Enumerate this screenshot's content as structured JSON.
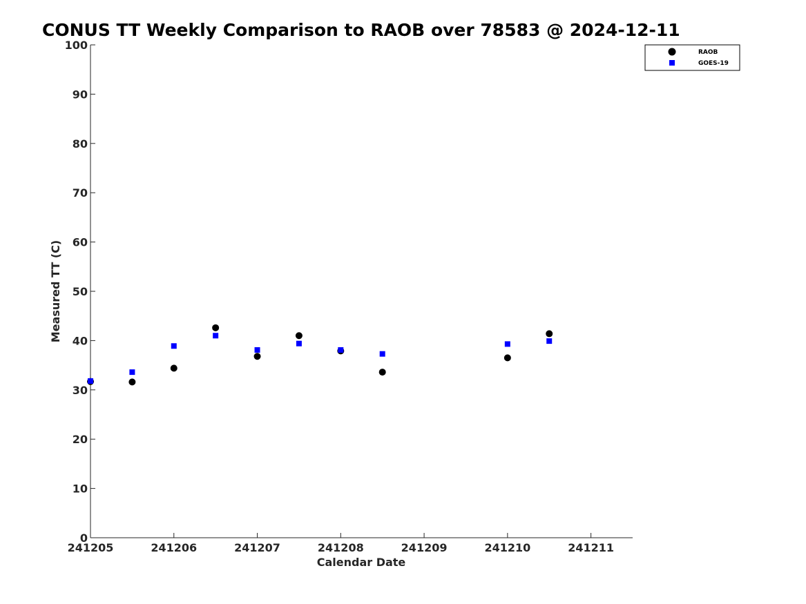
{
  "chart_data": {
    "type": "scatter",
    "title": "CONUS TT Weekly Comparison to RAOB over 78583 @ 2024-12-11",
    "xlabel": "Calendar Date",
    "ylabel": "Measured TT (C)",
    "xlim": [
      241205,
      241211.5
    ],
    "ylim": [
      0,
      100
    ],
    "x_ticks": [
      241205,
      241206,
      241207,
      241208,
      241209,
      241210,
      241211
    ],
    "x_tick_labels": [
      "241205",
      "241206",
      "241207",
      "241208",
      "241209",
      "241210",
      "241211"
    ],
    "y_ticks": [
      0,
      10,
      20,
      30,
      40,
      50,
      60,
      70,
      80,
      90,
      100
    ],
    "y_tick_labels": [
      "0",
      "10",
      "20",
      "30",
      "40",
      "50",
      "60",
      "70",
      "80",
      "90",
      "100"
    ],
    "grid": false,
    "legend_position": "top-right",
    "series": [
      {
        "name": "RAOB",
        "marker": "circle",
        "color": "#000000",
        "points": [
          {
            "x": 241205.0,
            "y": 31.7
          },
          {
            "x": 241205.5,
            "y": 31.6
          },
          {
            "x": 241206.0,
            "y": 34.4
          },
          {
            "x": 241206.5,
            "y": 42.6
          },
          {
            "x": 241207.0,
            "y": 36.8
          },
          {
            "x": 241207.5,
            "y": 41.0
          },
          {
            "x": 241208.0,
            "y": 37.9
          },
          {
            "x": 241208.5,
            "y": 33.6
          },
          {
            "x": 241210.0,
            "y": 36.5
          },
          {
            "x": 241210.5,
            "y": 41.4
          }
        ]
      },
      {
        "name": "GOES-19",
        "marker": "square",
        "color": "#0000ff",
        "points": [
          {
            "x": 241205.0,
            "y": 31.8
          },
          {
            "x": 241205.5,
            "y": 33.6
          },
          {
            "x": 241206.0,
            "y": 38.9
          },
          {
            "x": 241206.5,
            "y": 41.0
          },
          {
            "x": 241207.0,
            "y": 38.1
          },
          {
            "x": 241207.5,
            "y": 39.4
          },
          {
            "x": 241208.0,
            "y": 38.1
          },
          {
            "x": 241208.5,
            "y": 37.3
          },
          {
            "x": 241210.0,
            "y": 39.3
          },
          {
            "x": 241210.5,
            "y": 39.9
          }
        ]
      }
    ]
  }
}
